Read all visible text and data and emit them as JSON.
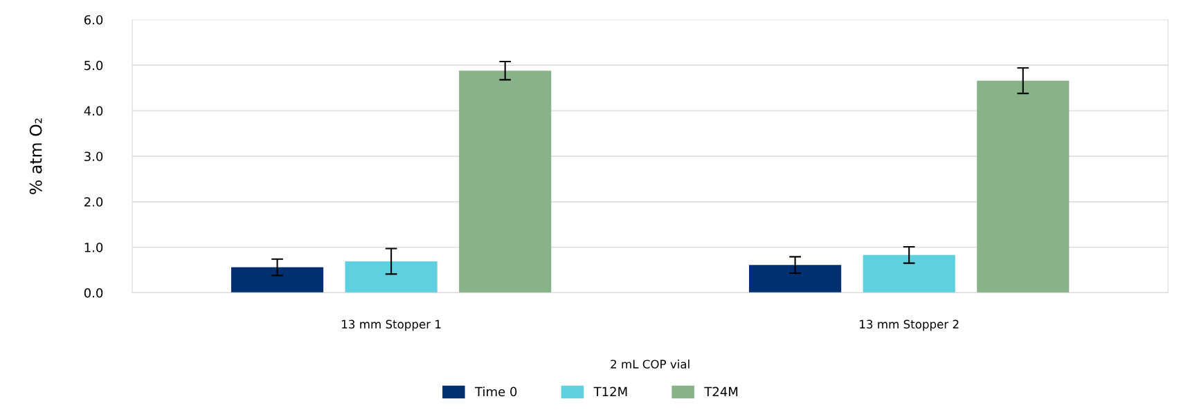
{
  "chart_data": {
    "type": "bar",
    "xlabel": "2 mL COP vial",
    "ylabel": "% atm O₂",
    "categories": [
      "13 mm Stopper 1",
      "13 mm Stopper 2"
    ],
    "series": [
      {
        "name": "Time 0",
        "color": "#003070",
        "values": [
          0.56,
          0.61
        ],
        "errors": [
          0.18,
          0.18
        ]
      },
      {
        "name": "T12M",
        "color": "#5fd0e0",
        "values": [
          0.69,
          0.83
        ],
        "errors": [
          0.28,
          0.18
        ]
      },
      {
        "name": "T24M",
        "color": "#88b388",
        "values": [
          4.88,
          4.66
        ],
        "errors": [
          0.2,
          0.28
        ]
      }
    ],
    "ylim": [
      0,
      6
    ],
    "yticks": [
      {
        "value": 0,
        "label": "0.0"
      },
      {
        "value": 1,
        "label": "1.0"
      },
      {
        "value": 2,
        "label": "2.0"
      },
      {
        "value": 3,
        "label": "3.0"
      },
      {
        "value": 4,
        "label": "4.0"
      },
      {
        "value": 5,
        "label": "5.0"
      },
      {
        "value": 6,
        "label": "6.0"
      }
    ],
    "grid": "y",
    "legend": "bottom"
  }
}
